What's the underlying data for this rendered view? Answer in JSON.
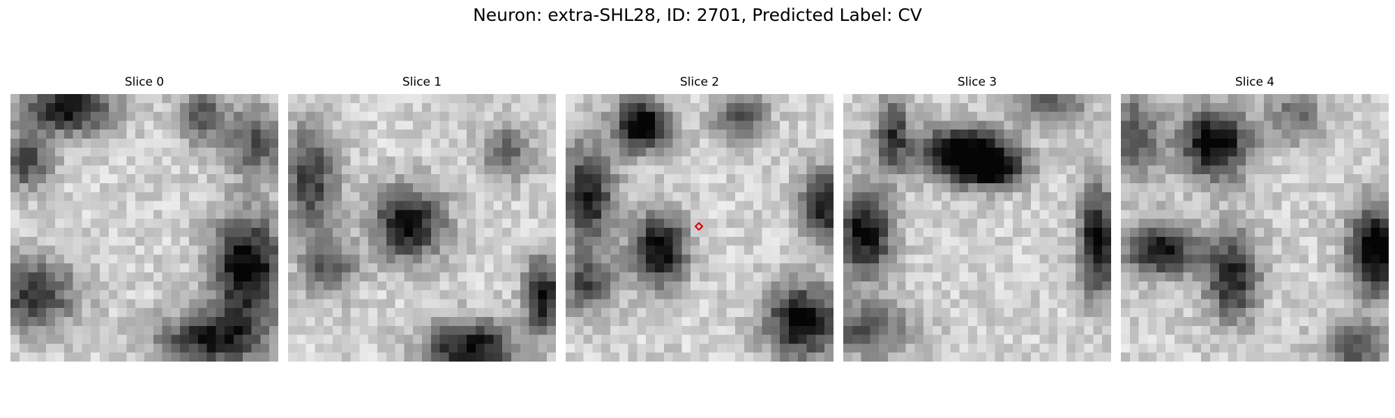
{
  "figure": {
    "title": "Neuron: extra-SHL28, ID: 2701, Predicted Label: CV"
  },
  "slices": [
    {
      "label": "Slice 0"
    },
    {
      "label": "Slice 1"
    },
    {
      "label": "Slice 2"
    },
    {
      "label": "Slice 3"
    },
    {
      "label": "Slice 4"
    }
  ],
  "colors": {
    "background": "#ffffff",
    "marker": "#e00000",
    "colormap": "grayscale"
  }
}
